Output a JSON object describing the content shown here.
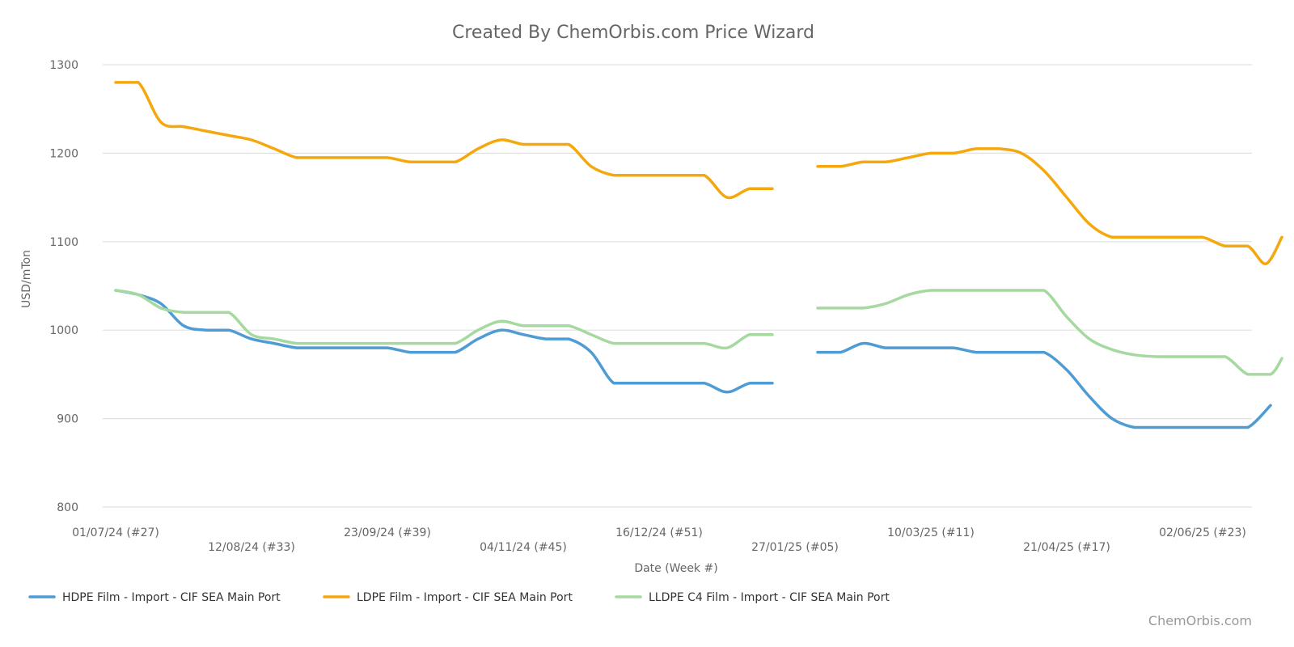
{
  "chart_data": {
    "type": "line",
    "title": "Created By ChemOrbis.com Price Wizard",
    "xlabel": "Date (Week #)",
    "ylabel": "USD/mTon",
    "ylim": [
      800,
      1300
    ],
    "yticks": [
      800,
      900,
      1000,
      1100,
      1200,
      1300
    ],
    "x_tick_labels": [
      {
        "week": 0,
        "label": "01/07/24 (#27)"
      },
      {
        "week": 6,
        "label": "12/08/24 (#33)"
      },
      {
        "week": 12,
        "label": "23/09/24 (#39)"
      },
      {
        "week": 18,
        "label": "04/11/24 (#45)"
      },
      {
        "week": 24,
        "label": "16/12/24 (#51)"
      },
      {
        "week": 30,
        "label": "27/01/25 (#05)"
      },
      {
        "week": 36,
        "label": "10/03/25 (#11)"
      },
      {
        "week": 42,
        "label": "21/04/25 (#17)"
      },
      {
        "week": 48,
        "label": "02/06/25 (#23)"
      }
    ],
    "x_range": [
      0,
      51.5
    ],
    "gap_weeks": [
      29,
      30,
      31
    ],
    "series": [
      {
        "name": "HDPE Film - Import - CIF SEA Main Port",
        "color": "#4f9bd4",
        "values": [
          [
            0,
            1045
          ],
          [
            1,
            1040
          ],
          [
            2,
            1030
          ],
          [
            3,
            1005
          ],
          [
            4,
            1000
          ],
          [
            5,
            1000
          ],
          [
            6,
            990
          ],
          [
            7,
            985
          ],
          [
            8,
            980
          ],
          [
            9,
            980
          ],
          [
            10,
            980
          ],
          [
            11,
            980
          ],
          [
            12,
            980
          ],
          [
            13,
            975
          ],
          [
            14,
            975
          ],
          [
            15,
            975
          ],
          [
            16,
            990
          ],
          [
            17,
            1000
          ],
          [
            18,
            995
          ],
          [
            19,
            990
          ],
          [
            20,
            990
          ],
          [
            21,
            975
          ],
          [
            22,
            940
          ],
          [
            23,
            940
          ],
          [
            24,
            940
          ],
          [
            25,
            940
          ],
          [
            26,
            940
          ],
          [
            27,
            930
          ],
          [
            28,
            940
          ],
          [
            29,
            940
          ],
          [
            31,
            975
          ],
          [
            32,
            975
          ],
          [
            33,
            985
          ],
          [
            34,
            980
          ],
          [
            35,
            980
          ],
          [
            36,
            980
          ],
          [
            37,
            980
          ],
          [
            38,
            975
          ],
          [
            39,
            975
          ],
          [
            40,
            975
          ],
          [
            41,
            975
          ],
          [
            42,
            955
          ],
          [
            43,
            925
          ],
          [
            44,
            900
          ],
          [
            45,
            890
          ],
          [
            46,
            890
          ],
          [
            47,
            890
          ],
          [
            48,
            890
          ],
          [
            49,
            890
          ],
          [
            50,
            890
          ],
          [
            51,
            915
          ]
        ]
      },
      {
        "name": "LDPE Film - Import - CIF SEA Main Port",
        "color": "#f5a80d",
        "values": [
          [
            0,
            1280
          ],
          [
            1,
            1280
          ],
          [
            2,
            1235
          ],
          [
            3,
            1230
          ],
          [
            4,
            1225
          ],
          [
            5,
            1220
          ],
          [
            6,
            1215
          ],
          [
            7,
            1205
          ],
          [
            8,
            1195
          ],
          [
            9,
            1195
          ],
          [
            10,
            1195
          ],
          [
            11,
            1195
          ],
          [
            12,
            1195
          ],
          [
            13,
            1190
          ],
          [
            14,
            1190
          ],
          [
            15,
            1190
          ],
          [
            16,
            1205
          ],
          [
            17,
            1215
          ],
          [
            18,
            1210
          ],
          [
            19,
            1210
          ],
          [
            20,
            1210
          ],
          [
            21,
            1185
          ],
          [
            22,
            1175
          ],
          [
            23,
            1175
          ],
          [
            24,
            1175
          ],
          [
            25,
            1175
          ],
          [
            26,
            1175
          ],
          [
            27,
            1150
          ],
          [
            28,
            1160
          ],
          [
            29,
            1160
          ],
          [
            31,
            1185
          ],
          [
            32,
            1185
          ],
          [
            33,
            1190
          ],
          [
            34,
            1190
          ],
          [
            35,
            1195
          ],
          [
            36,
            1200
          ],
          [
            37,
            1200
          ],
          [
            38,
            1205
          ],
          [
            39,
            1205
          ],
          [
            40,
            1200
          ],
          [
            41,
            1180
          ],
          [
            42,
            1150
          ],
          [
            43,
            1120
          ],
          [
            44,
            1105
          ],
          [
            45,
            1105
          ],
          [
            46,
            1105
          ],
          [
            47,
            1105
          ],
          [
            48,
            1105
          ],
          [
            49,
            1095
          ],
          [
            50,
            1095
          ],
          [
            50.8,
            1075
          ],
          [
            51.5,
            1105
          ]
        ]
      },
      {
        "name": "LLDPE C4 Film - Import - CIF SEA Main Port",
        "color": "#a6d9a0",
        "values": [
          [
            0,
            1045
          ],
          [
            1,
            1040
          ],
          [
            2,
            1025
          ],
          [
            3,
            1020
          ],
          [
            4,
            1020
          ],
          [
            5,
            1020
          ],
          [
            6,
            995
          ],
          [
            7,
            990
          ],
          [
            8,
            985
          ],
          [
            9,
            985
          ],
          [
            10,
            985
          ],
          [
            11,
            985
          ],
          [
            12,
            985
          ],
          [
            13,
            985
          ],
          [
            14,
            985
          ],
          [
            15,
            985
          ],
          [
            16,
            1000
          ],
          [
            17,
            1010
          ],
          [
            18,
            1005
          ],
          [
            19,
            1005
          ],
          [
            20,
            1005
          ],
          [
            21,
            995
          ],
          [
            22,
            985
          ],
          [
            23,
            985
          ],
          [
            24,
            985
          ],
          [
            25,
            985
          ],
          [
            26,
            985
          ],
          [
            27,
            980
          ],
          [
            28,
            995
          ],
          [
            29,
            995
          ],
          [
            31,
            1025
          ],
          [
            32,
            1025
          ],
          [
            33,
            1025
          ],
          [
            34,
            1030
          ],
          [
            35,
            1040
          ],
          [
            36,
            1045
          ],
          [
            37,
            1045
          ],
          [
            38,
            1045
          ],
          [
            39,
            1045
          ],
          [
            40,
            1045
          ],
          [
            41,
            1045
          ],
          [
            42,
            1015
          ],
          [
            43,
            990
          ],
          [
            44,
            978
          ],
          [
            45,
            972
          ],
          [
            46,
            970
          ],
          [
            47,
            970
          ],
          [
            48,
            970
          ],
          [
            49,
            970
          ],
          [
            50,
            950
          ],
          [
            51,
            950
          ],
          [
            51.5,
            968
          ]
        ]
      }
    ]
  },
  "footer": {
    "credit": "ChemOrbis.com"
  }
}
